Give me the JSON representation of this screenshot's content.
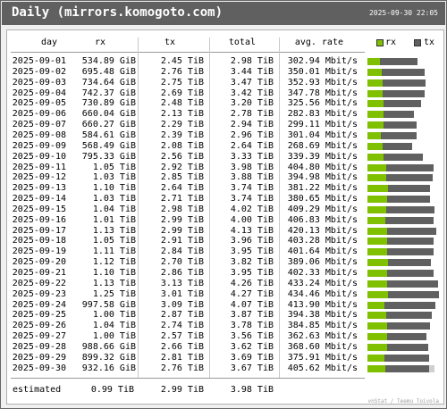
{
  "title": "Daily (mirrors.komogoto.com)",
  "timestamp": "2025-09-30 22:05",
  "columns": {
    "day": "day",
    "rx": "rx",
    "tx": "tx",
    "total": "total",
    "rate": "avg. rate"
  },
  "legend": {
    "rx": "rx",
    "tx": "tx"
  },
  "colors": {
    "header": "#606060",
    "rx": "#7fc000",
    "tx": "#606060",
    "estimate": "#d0d0d0"
  },
  "rows": [
    {
      "day": "2025-09-01",
      "rx": "534.89 GiB",
      "tx": "2.45 TiB",
      "total": "2.98 TiB",
      "rate": "302.94 Mbit/s"
    },
    {
      "day": "2025-09-02",
      "rx": "695.48 GiB",
      "tx": "2.76 TiB",
      "total": "3.44 TiB",
      "rate": "350.01 Mbit/s"
    },
    {
      "day": "2025-09-03",
      "rx": "734.64 GiB",
      "tx": "2.75 TiB",
      "total": "3.47 TiB",
      "rate": "352.93 Mbit/s"
    },
    {
      "day": "2025-09-04",
      "rx": "742.37 GiB",
      "tx": "2.69 TiB",
      "total": "3.42 TiB",
      "rate": "347.78 Mbit/s"
    },
    {
      "day": "2025-09-05",
      "rx": "730.89 GiB",
      "tx": "2.48 TiB",
      "total": "3.20 TiB",
      "rate": "325.56 Mbit/s"
    },
    {
      "day": "2025-09-06",
      "rx": "660.04 GiB",
      "tx": "2.13 TiB",
      "total": "2.78 TiB",
      "rate": "282.83 Mbit/s"
    },
    {
      "day": "2025-09-07",
      "rx": "660.27 GiB",
      "tx": "2.29 TiB",
      "total": "2.94 TiB",
      "rate": "299.11 Mbit/s"
    },
    {
      "day": "2025-09-08",
      "rx": "584.61 GiB",
      "tx": "2.39 TiB",
      "total": "2.96 TiB",
      "rate": "301.04 Mbit/s"
    },
    {
      "day": "2025-09-09",
      "rx": "568.49 GiB",
      "tx": "2.08 TiB",
      "total": "2.64 TiB",
      "rate": "268.69 Mbit/s"
    },
    {
      "day": "2025-09-10",
      "rx": "795.33 GiB",
      "tx": "2.56 TiB",
      "total": "3.33 TiB",
      "rate": "339.39 Mbit/s"
    },
    {
      "day": "2025-09-11",
      "rx": "1.05 TiB",
      "tx": "2.92 TiB",
      "total": "3.98 TiB",
      "rate": "404.80 Mbit/s"
    },
    {
      "day": "2025-09-12",
      "rx": "1.03 TiB",
      "tx": "2.85 TiB",
      "total": "3.88 TiB",
      "rate": "394.98 Mbit/s"
    },
    {
      "day": "2025-09-13",
      "rx": "1.10 TiB",
      "tx": "2.64 TiB",
      "total": "3.74 TiB",
      "rate": "381.22 Mbit/s"
    },
    {
      "day": "2025-09-14",
      "rx": "1.03 TiB",
      "tx": "2.71 TiB",
      "total": "3.74 TiB",
      "rate": "380.65 Mbit/s"
    },
    {
      "day": "2025-09-15",
      "rx": "1.04 TiB",
      "tx": "2.98 TiB",
      "total": "4.02 TiB",
      "rate": "409.29 Mbit/s"
    },
    {
      "day": "2025-09-16",
      "rx": "1.01 TiB",
      "tx": "2.99 TiB",
      "total": "4.00 TiB",
      "rate": "406.83 Mbit/s"
    },
    {
      "day": "2025-09-17",
      "rx": "1.13 TiB",
      "tx": "2.99 TiB",
      "total": "4.13 TiB",
      "rate": "420.13 Mbit/s"
    },
    {
      "day": "2025-09-18",
      "rx": "1.05 TiB",
      "tx": "2.91 TiB",
      "total": "3.96 TiB",
      "rate": "403.28 Mbit/s"
    },
    {
      "day": "2025-09-19",
      "rx": "1.11 TiB",
      "tx": "2.84 TiB",
      "total": "3.95 TiB",
      "rate": "401.64 Mbit/s"
    },
    {
      "day": "2025-09-20",
      "rx": "1.12 TiB",
      "tx": "2.70 TiB",
      "total": "3.82 TiB",
      "rate": "389.06 Mbit/s"
    },
    {
      "day": "2025-09-21",
      "rx": "1.10 TiB",
      "tx": "2.86 TiB",
      "total": "3.95 TiB",
      "rate": "402.33 Mbit/s"
    },
    {
      "day": "2025-09-22",
      "rx": "1.13 TiB",
      "tx": "3.13 TiB",
      "total": "4.26 TiB",
      "rate": "433.24 Mbit/s"
    },
    {
      "day": "2025-09-23",
      "rx": "1.25 TiB",
      "tx": "3.01 TiB",
      "total": "4.27 TiB",
      "rate": "434.46 Mbit/s"
    },
    {
      "day": "2025-09-24",
      "rx": "997.58 GiB",
      "tx": "3.09 TiB",
      "total": "4.07 TiB",
      "rate": "413.90 Mbit/s"
    },
    {
      "day": "2025-09-25",
      "rx": "1.00 TiB",
      "tx": "2.87 TiB",
      "total": "3.87 TiB",
      "rate": "394.38 Mbit/s"
    },
    {
      "day": "2025-09-26",
      "rx": "1.04 TiB",
      "tx": "2.74 TiB",
      "total": "3.78 TiB",
      "rate": "384.85 Mbit/s"
    },
    {
      "day": "2025-09-27",
      "rx": "1.00 TiB",
      "tx": "2.57 TiB",
      "total": "3.56 TiB",
      "rate": "362.63 Mbit/s"
    },
    {
      "day": "2025-09-28",
      "rx": "988.66 GiB",
      "tx": "2.66 TiB",
      "total": "3.62 TiB",
      "rate": "368.60 Mbit/s"
    },
    {
      "day": "2025-09-29",
      "rx": "899.32 GiB",
      "tx": "2.81 TiB",
      "total": "3.69 TiB",
      "rate": "375.91 Mbit/s"
    },
    {
      "day": "2025-09-30",
      "rx": "932.16 GiB",
      "tx": "2.76 TiB",
      "total": "3.67 TiB",
      "rate": "405.62 Mbit/s"
    }
  ],
  "bar_levels": {
    "total_fraction": [
      0.7,
      0.8,
      0.81,
      0.8,
      0.75,
      0.65,
      0.69,
      0.69,
      0.62,
      0.78,
      0.93,
      0.91,
      0.87,
      0.87,
      0.94,
      0.93,
      0.96,
      0.92,
      0.92,
      0.89,
      0.92,
      0.99,
      1.0,
      0.95,
      0.9,
      0.88,
      0.83,
      0.85,
      0.86,
      0.86
    ],
    "rx_fraction": [
      0.18,
      0.2,
      0.21,
      0.21,
      0.23,
      0.23,
      0.22,
      0.19,
      0.21,
      0.23,
      0.26,
      0.26,
      0.29,
      0.28,
      0.26,
      0.25,
      0.27,
      0.27,
      0.28,
      0.29,
      0.28,
      0.27,
      0.29,
      0.24,
      0.26,
      0.28,
      0.28,
      0.27,
      0.24,
      0.25
    ],
    "estimate_total_fraction": 0.93
  },
  "estimated": {
    "label": "estimated",
    "rx": "0.99 TiB",
    "tx": "2.99 TiB",
    "total": "3.98 TiB"
  },
  "footer": "vnStat / Teemu Toivola"
}
